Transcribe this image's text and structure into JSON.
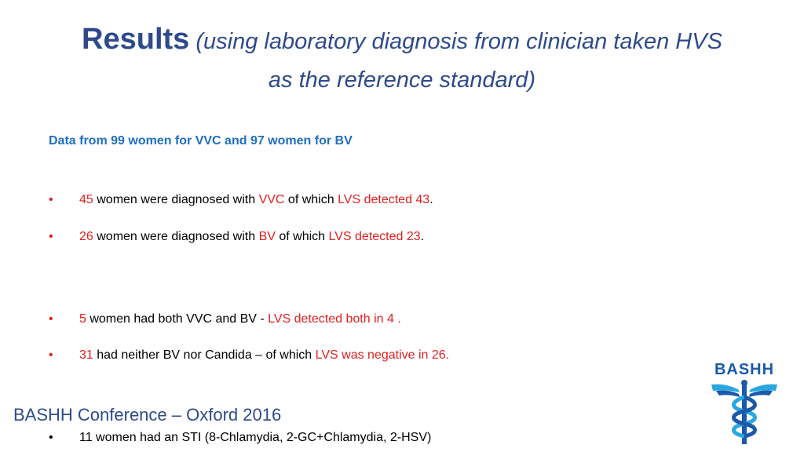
{
  "title": {
    "main": "Results",
    "line1": " (using laboratory diagnosis from clinician taken HVS",
    "line2": "as the reference standard)"
  },
  "subtitle": "Data from 99 women for VVC and 97 women for BV",
  "bullets": [
    {
      "n": "45",
      "t1": " women were diagnosed with ",
      "r1": "VVC",
      "t2": " of which ",
      "r2": "LVS detected 43",
      "t3": "."
    },
    {
      "n": "26",
      "t1": " women were diagnosed with ",
      "r1": "BV",
      "t2": " of which ",
      "r2": "LVS detected 23",
      "t3": "."
    },
    {
      "n": "5",
      "t1": " women had both VVC and BV - ",
      "r1": "LVS detected both in 4   .",
      "t2": ""
    },
    {
      "n": "31",
      "t1": " had neither BV nor Candida – of which ",
      "r1": "LVS was negative in 26.",
      "t2": ""
    },
    {
      "text": "11 women had an STI (8-Chlamydia, 2-GC+Chlamydia,  2-HSV)"
    }
  ],
  "bullet_glyph": "•",
  "footer": "BASHH Conference – Oxford 2016",
  "logo_text": "BASHH",
  "colors": {
    "title": "#2e4a8b",
    "subtitle": "#1f6fbf",
    "highlight": "#e02020",
    "logo": "#1a5aa8"
  }
}
